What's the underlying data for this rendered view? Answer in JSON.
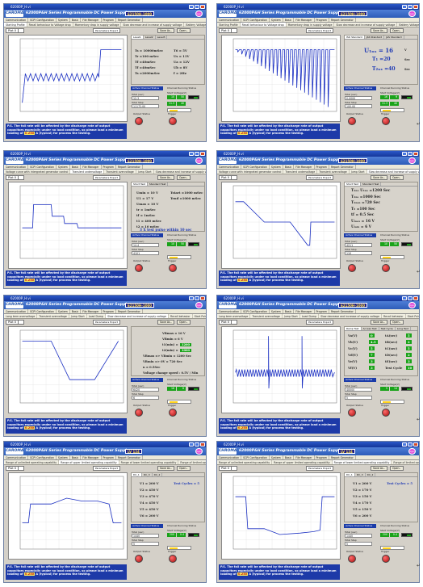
{
  "app": {
    "header_title": "62000P&H Series  Programmable DC Power Supply",
    "model": "62150H-1000",
    "window_title": "62000P_H.vi",
    "logout": "logout",
    "menu": [
      "Communication",
      "SCPI Configuration",
      "System",
      "Basic",
      "File Manager",
      "Program",
      "Report Generator"
    ],
    "save_as": "Save As..",
    "open": "Open..",
    "parameters_button": "Parameters Export",
    "plot_label": "Plot 0",
    "warning_pre": "P.S. The fall rate will be affected by the discharge rate of output capacitors especially under no load condition, so please load a minimum loading of",
    "warning_post": "A (typical) for process the testing.",
    "labels": {
      "active_channel": "Active Channel Status",
      "channel_running": "Channel Running Status",
      "start_voltage": "Start Voltage(V)",
      "end_voltage": "End Voltage(V)",
      "total_time": "Total(sec)",
      "total_step": "Total Step",
      "output_status": "Output Status",
      "trigger": "Trigger",
      "test_cycle": "Test Cycle",
      "time_ms": "Time(ms)",
      "voltage_v": "Amplitude(V)"
    }
  },
  "panels": [
    {
      "id": "p1",
      "tabs": [
        "Starting Profile",
        "Recall behaviour to Voltage drop",
        "Momentary drop in supply voltage",
        "Slow decrease and increase of supply voltage",
        "Battery Voltage Dropout"
      ],
      "active_tab": 0,
      "info_tabs": [
        "Level1",
        "Level2",
        "Level3"
      ],
      "params": [
        "Ts = 10000mSec",
        "T6 = 5V",
        "Tr  =100 mSec",
        "Us = 11V",
        "Tf  =40mSec",
        "Ua = 12V",
        "Tf  =40mSec",
        "Ub = 8V",
        "Ts  =2000mSec",
        "f = 2Hz"
      ],
      "active_channel": "Active Channel Status",
      "fields": [
        [
          "Total (sec)",
          "12.3"
        ],
        [
          "Total Step",
          "11172.00"
        ]
      ],
      "green": [
        "10",
        "50",
        "11.3",
        "40"
      ],
      "min_load": "0.250",
      "series": "p1"
    },
    {
      "id": "p2",
      "tabs": [
        "Starting Profile",
        "Recall behaviour to Voltage drop",
        "Momentary drop in supply voltage",
        "Slow decrease and increase of supply voltage",
        "Battery Voltage Dropout"
      ],
      "active_tab": 1,
      "info_tabs": [
        "ISO Standard",
        "JAS Standard",
        "JAS Standard"
      ],
      "params": [
        "U₁ₙₛ = 16",
        "T₁ =20",
        "T₂ₙₓ =40"
      ],
      "params_units": [
        "V",
        "Sec",
        "Sec"
      ],
      "fields": [
        [
          "Total (sec)",
          "0.0000"
        ],
        [
          "Total Step",
          "100.00"
        ]
      ],
      "green": [
        "16",
        "9",
        "11.3",
        "40"
      ],
      "min_load": "0.250",
      "series": "p2"
    },
    {
      "id": "p3",
      "tabs": [
        "Voltage curve with intergrated generator control",
        "Transient undervoltage",
        "Transient overvoltage",
        "Jump Start",
        "Slow decrease and increase of supply voltage",
        "Load Dump"
      ],
      "active_tab": 1,
      "info_tabs": [
        "Short Test",
        "Standard Test"
      ],
      "params": [
        "Umin = 10 V",
        "Tstart =1000 mSec",
        "U1 = 17 V",
        "Tend =1000 mSec",
        "Umax = 10 V",
        "tr = 1mSec",
        "tf = 1mSec",
        "t1 = 400 mSec",
        "t2 = 10 mSec"
      ],
      "highlight": "3 X test pulse within 10 sec",
      "fields": [
        [
          "Total (sec)",
          "14.4"
        ],
        [
          "Total Step",
          "4101"
        ]
      ],
      "green": [
        "10",
        "50"
      ],
      "min_load": "0.250",
      "series": "p3"
    },
    {
      "id": "p4",
      "tabs": [
        "Voltage curve with intergrated generator control",
        "Transient undervoltage",
        "Transient overvoltage",
        "Jump Start",
        "Slow decrease and increase of supply voltage",
        "Load Dump"
      ],
      "active_tab": 4,
      "info_tabs": [
        "Short Test",
        "Standard Test"
      ],
      "params": [
        "T₁ₙₓ U₁ₙₛ =1200 Sec",
        "T₁ₙₛ =1000 Sec",
        "T₁ₙₛₙ =720 Sec",
        "T₅ =100 Sec",
        "tf = 0.5 Sec",
        "Uₘₐₓ = 16 V",
        "Uₘᵢₙ = 6 V"
      ],
      "fields": [
        [
          "Total (sec)",
          "4211"
        ],
        [
          "Total Step",
          "110"
        ]
      ],
      "green": [
        "10",
        "50"
      ],
      "min_load": "0.250",
      "series": "p4"
    },
    {
      "id": "p5",
      "tabs": [
        "Long term overvoltage",
        "Transient overvoltage",
        "Jump Start",
        "Load Dump",
        "Slow decrease and increase of supply voltage",
        "Recall behavior",
        "Start Pulses",
        "Voltage curve with electric system control"
      ],
      "active_tab": 4,
      "info_tabs": [],
      "params": [
        "VBmax = 16 V",
        "VBmin = 6 V",
        "t1(min) =",
        "t2(min) =",
        "VBmax => VBmin = 1200 Sec",
        "VBmin => 0V = 720 Sec",
        "n = 0.5Sec",
        "Voltage change speed : 0.5V / Min"
      ],
      "green_side": [
        "1200",
        "1000"
      ],
      "fields": [
        [
          "Total (sec)",
          "6420"
        ],
        [
          "Total Step",
          "6"
        ]
      ],
      "green": [
        "16",
        "6"
      ],
      "min_load": "0.250",
      "series": "p5"
    },
    {
      "id": "p6",
      "tabs": [
        "Long term overvoltage",
        "Transient overvoltage",
        "Jump Start",
        "Load Dump",
        "Slow decrease and increase of supply voltage",
        "Recall behavior",
        "Start Pulses",
        "Voltage curve with electric system control"
      ],
      "active_tab": 7,
      "info_tabs": [
        "Ramp Test",
        "Access Test",
        "Test Cycle",
        "Long Test"
      ],
      "rows": [
        [
          "Va(V)",
          "0",
          "tA(sec)",
          "5"
        ],
        [
          "Vb(V)",
          "4.5",
          "tB(sec)",
          "2"
        ],
        [
          "Vc(V)",
          "5",
          "tC(sec)",
          "5"
        ],
        [
          "Vd(V)",
          "7",
          "tD(sec)",
          "2"
        ],
        [
          "Ve(V)",
          "3",
          "tE(sec)",
          "3"
        ],
        [
          "Vf(V)",
          "3",
          "Test Cycle",
          "10"
        ]
      ],
      "fields": [
        [
          "Total (sec)",
          "40000"
        ],
        [
          "Total Step",
          "5"
        ]
      ],
      "green": [
        "5",
        "14"
      ],
      "min_load": "0.250",
      "series": "p6"
    },
    {
      "id": "p7",
      "model": "LV 124",
      "tabs": [
        "Range of unlimited operating capability",
        "Range of upper limited operating capability",
        "Range of lower limited operating capability",
        "Range of limited operating capability"
      ],
      "active_tab": 1,
      "info_tabs": [
        "DC_1",
        "DC_3",
        "DC_2"
      ],
      "params": [
        "V1 = 200 V",
        "V2 = 450 V",
        "V3 = 470 V",
        "V4 = 450 V",
        "V5 = 450 V",
        "V6 = 200 V"
      ],
      "cycles": "Test Cycles = 5",
      "fields": [
        [
          "Total (sec)",
          "1440"
        ],
        [
          "Total Step",
          "5"
        ]
      ],
      "green": [
        "200",
        "0.4"
      ],
      "min_load": "0.250",
      "series": "p7"
    },
    {
      "id": "p8",
      "model": "LV 124",
      "tabs": [
        "Range of unlimited operating capability",
        "Range of upper limited operating capability",
        "Range of lower limited operating capability",
        "Range of limited operating capability"
      ],
      "active_tab": 2,
      "info_tabs": [
        "DC_1",
        "DC_3",
        "DC_2"
      ],
      "params": [
        "V1 = 200 V",
        "V2 = 170 V",
        "V3 = 150 V",
        "V4 = 170 V",
        "V5 = 150 V",
        "V6 = 200 V"
      ],
      "cycles": "Test Cycles = 5",
      "fields": [
        [
          "Total (sec)",
          "1440"
        ],
        [
          "Total Step",
          "5"
        ]
      ],
      "green": [
        "200",
        "0.4"
      ],
      "min_load": "0.250",
      "series": "p8"
    }
  ]
}
